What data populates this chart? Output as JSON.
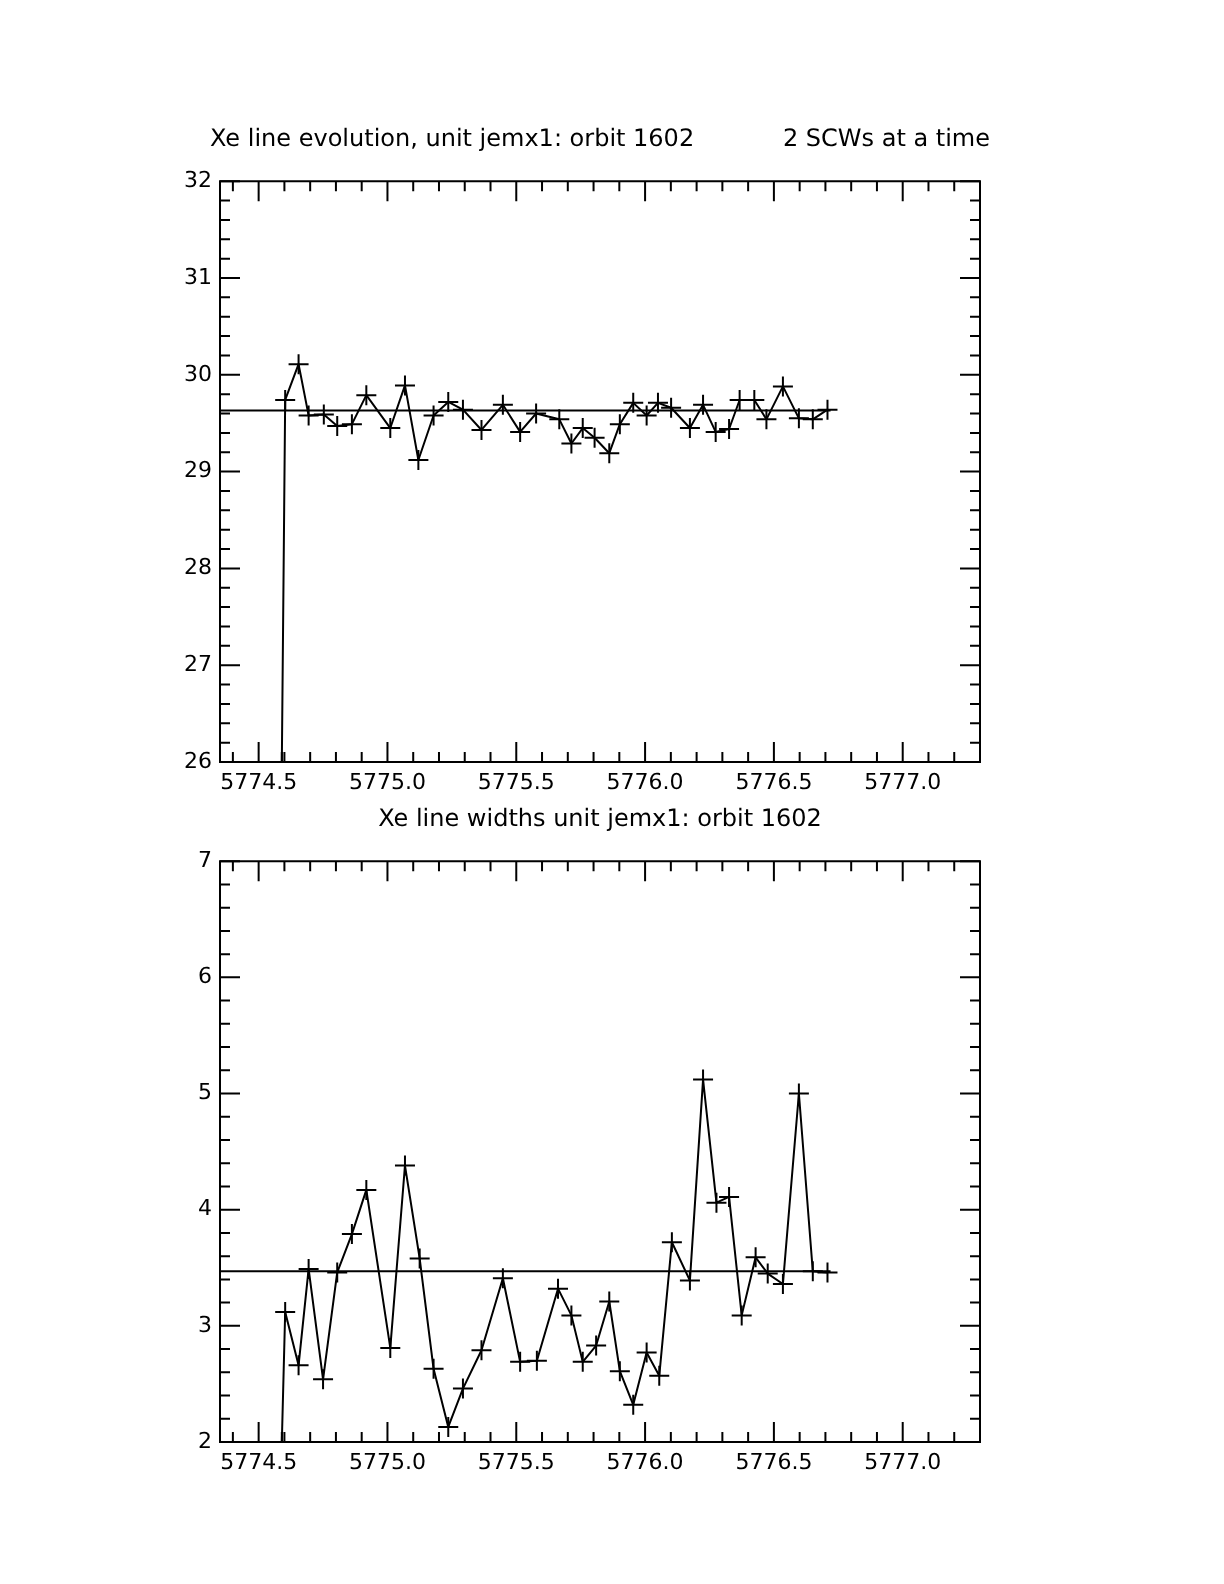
{
  "chart_data": [
    {
      "type": "line",
      "title": "Xe line evolution, unit jemx1: orbit 1602",
      "subtitle": "2 SCWs at a time",
      "grid": false,
      "legend": false,
      "xlim": [
        5774.35,
        5777.3
      ],
      "xticks": [
        {
          "value": 5774.5,
          "label": "5774.5"
        },
        {
          "value": 5775,
          "label": "5775.0"
        },
        {
          "value": 5775.5,
          "label": "5775.5"
        },
        {
          "value": 5776,
          "label": "5776.0"
        },
        {
          "value": 5776.5,
          "label": "5776.5"
        },
        {
          "value": 5777,
          "label": "5777.0"
        }
      ],
      "ylim": [
        26,
        32
      ],
      "yticks": [
        26,
        27,
        28,
        29,
        30,
        31,
        32
      ],
      "series": [
        {
          "color": "#000000",
          "marker": "cross",
          "x": [
            5774.59,
            5774.603,
            5774.655,
            5774.694,
            5774.753,
            5774.805,
            5774.862,
            5774.918,
            5775.011,
            5775.068,
            5775.12,
            5775.179,
            5775.236,
            5775.293,
            5775.365,
            5775.448,
            5775.515,
            5775.577,
            5775.667,
            5775.714,
            5775.758,
            5775.804,
            5775.861,
            5775.902,
            5775.954,
            5776.006,
            5776.05,
            5776.101,
            5776.174,
            5776.225,
            5776.274,
            5776.326,
            5776.367,
            5776.424,
            5776.471,
            5776.535,
            5776.597,
            5776.651,
            5776.708
          ],
          "values": [
            26,
            29.74,
            30.11,
            29.58,
            29.59,
            29.47,
            29.49,
            29.79,
            29.45,
            29.89,
            29.12,
            29.58,
            29.72,
            29.64,
            29.43,
            29.69,
            29.41,
            29.6,
            29.54,
            29.29,
            29.45,
            29.35,
            29.19,
            29.49,
            29.71,
            29.58,
            29.71,
            29.66,
            29.45,
            29.69,
            29.41,
            29.44,
            29.74,
            29.74,
            29.54,
            29.88,
            29.55,
            29.54,
            29.64
          ]
        },
        {
          "color": "#000000",
          "marker": "none",
          "x": [
            5774.35,
            5776.72
          ],
          "values": [
            29.63,
            29.63
          ]
        }
      ]
    },
    {
      "type": "line",
      "title": "Xe line widths unit jemx1: orbit 1602",
      "grid": false,
      "legend": false,
      "xlim": [
        5774.35,
        5777.3
      ],
      "xticks": [
        {
          "value": 5774.5,
          "label": "5774.5"
        },
        {
          "value": 5775,
          "label": "5775.0"
        },
        {
          "value": 5775.5,
          "label": "5775.5"
        },
        {
          "value": 5776,
          "label": "5776.0"
        },
        {
          "value": 5776.5,
          "label": "5776.5"
        },
        {
          "value": 5777,
          "label": "5777.0"
        }
      ],
      "ylim": [
        2,
        7
      ],
      "yticks": [
        2,
        3,
        4,
        5,
        6,
        7
      ],
      "series": [
        {
          "color": "#000000",
          "marker": "cross",
          "x": [
            5774.59,
            5774.603,
            5774.655,
            5774.694,
            5774.75,
            5774.805,
            5774.862,
            5774.918,
            5775.011,
            5775.068,
            5775.125,
            5775.179,
            5775.236,
            5775.293,
            5775.365,
            5775.448,
            5775.515,
            5775.58,
            5775.662,
            5775.714,
            5775.758,
            5775.81,
            5775.861,
            5775.902,
            5775.954,
            5776.006,
            5776.055,
            5776.104,
            5776.174,
            5776.225,
            5776.277,
            5776.326,
            5776.375,
            5776.429,
            5776.476,
            5776.535,
            5776.597,
            5776.651,
            5776.708
          ],
          "values": [
            2,
            3.12,
            2.66,
            3.49,
            2.54,
            3.46,
            3.79,
            4.17,
            2.81,
            4.38,
            3.58,
            2.63,
            2.13,
            2.46,
            2.79,
            3.41,
            2.69,
            2.7,
            3.32,
            3.09,
            2.69,
            2.83,
            3.21,
            2.61,
            2.32,
            2.77,
            2.57,
            3.72,
            3.39,
            5.12,
            4.06,
            4.11,
            3.09,
            3.59,
            3.45,
            3.36,
            5.0,
            3.47,
            3.46
          ]
        },
        {
          "color": "#000000",
          "marker": "none",
          "x": [
            5774.35,
            5776.72
          ],
          "values": [
            3.47,
            3.47
          ]
        }
      ]
    }
  ]
}
